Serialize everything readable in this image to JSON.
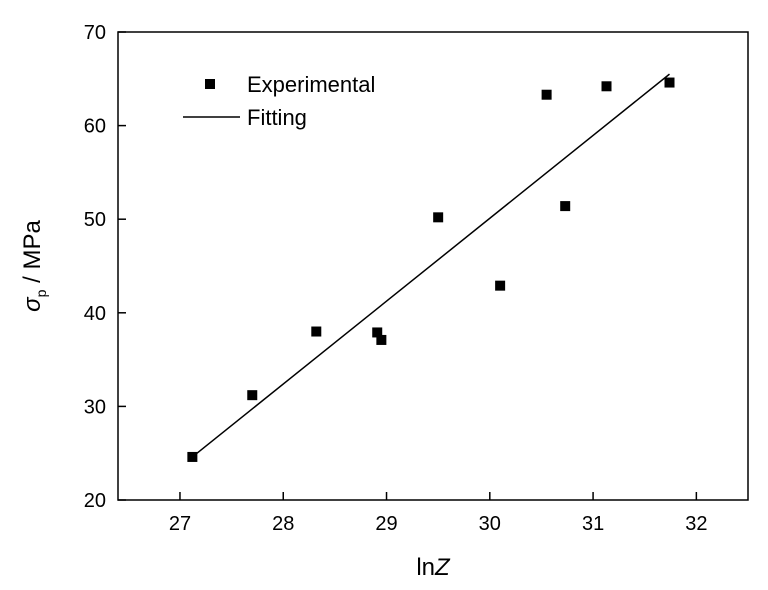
{
  "chart_data": {
    "type": "scatter",
    "title": "",
    "xlabel_prefix": "ln",
    "xlabel_var": "Z",
    "ylabel_symbol": "σ",
    "ylabel_sub": "p",
    "ylabel_unit": " / MPa",
    "xlim": [
      26.4,
      32.5
    ],
    "ylim": [
      20,
      70
    ],
    "xticks": [
      27,
      28,
      29,
      30,
      31,
      32
    ],
    "yticks": [
      20,
      30,
      40,
      50,
      60,
      70
    ],
    "grid": false,
    "legend_position": "top-left",
    "series": [
      {
        "name": "Experimental",
        "kind": "scatter",
        "marker": "square",
        "color": "#000000",
        "x": [
          27.12,
          27.7,
          28.32,
          28.91,
          28.95,
          29.5,
          30.1,
          30.55,
          30.73,
          31.13,
          31.74
        ],
        "y": [
          24.6,
          31.2,
          38.0,
          37.9,
          37.1,
          50.2,
          42.9,
          63.3,
          51.4,
          64.2,
          64.6
        ]
      },
      {
        "name": "Fitting",
        "kind": "line",
        "color": "#000000",
        "x": [
          27.12,
          31.74
        ],
        "y": [
          24.6,
          65.5
        ]
      }
    ]
  }
}
